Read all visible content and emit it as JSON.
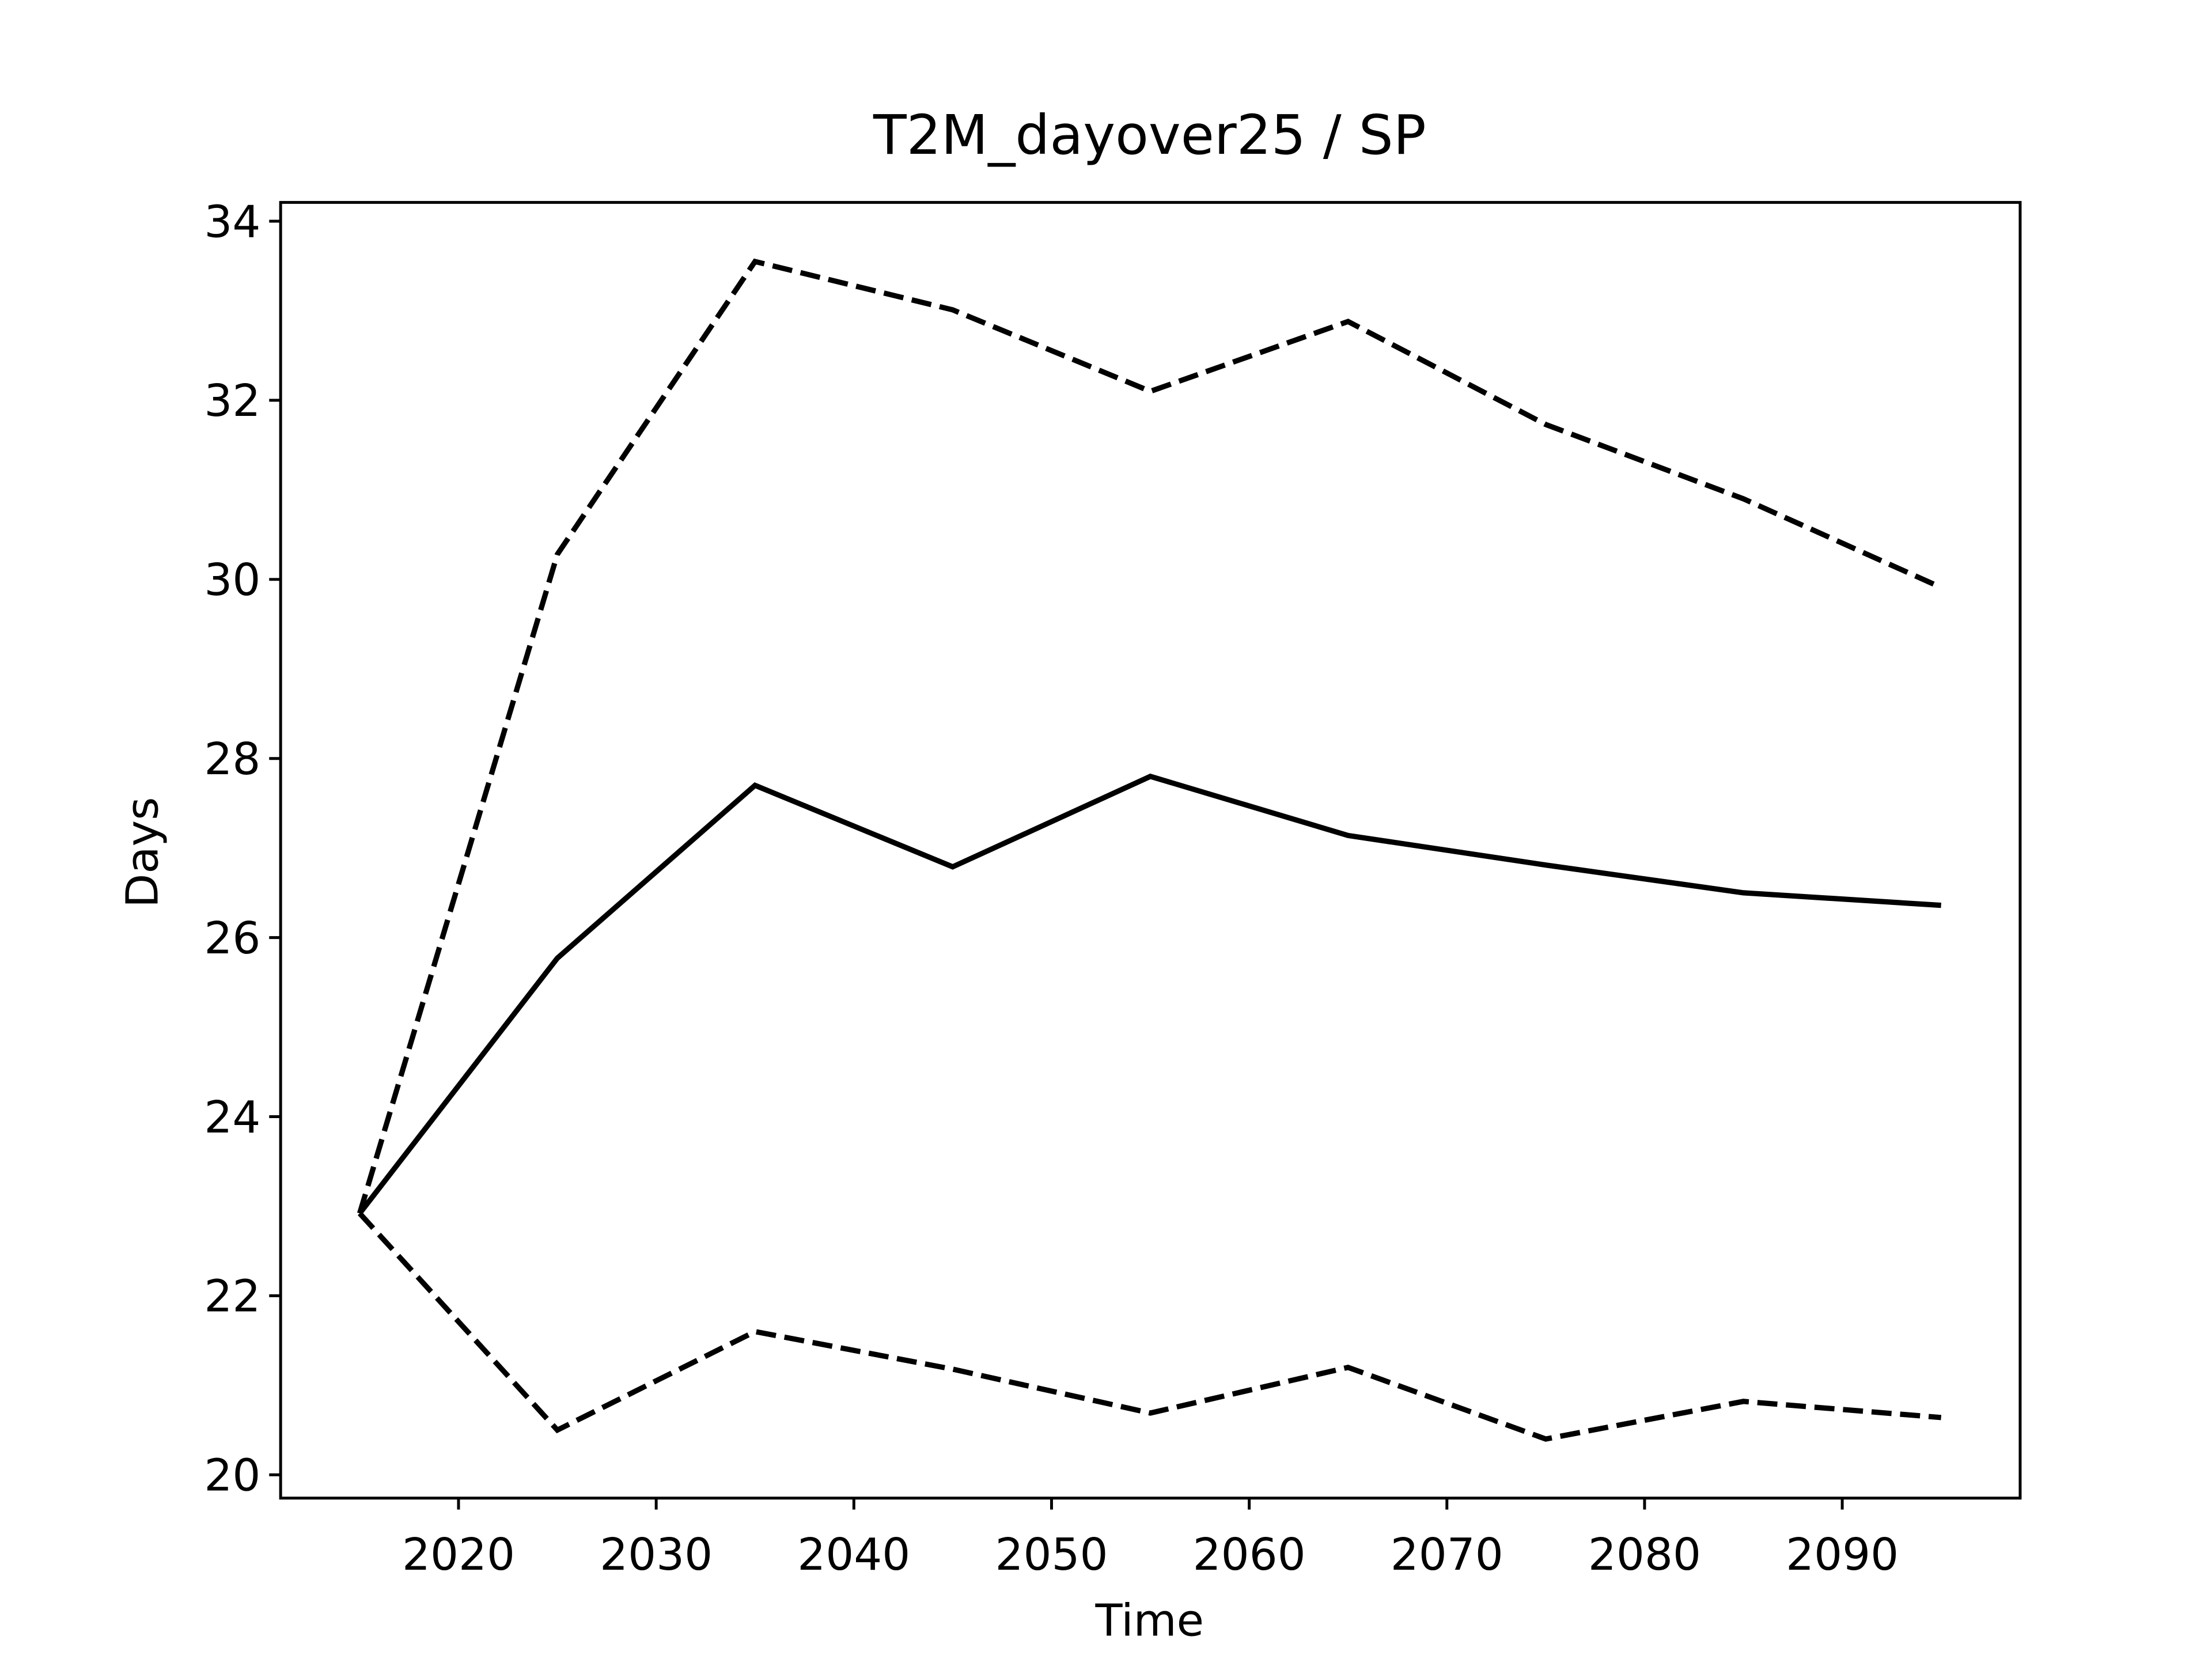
{
  "chart_data": {
    "type": "line",
    "title": "T2M_dayover25 / SP",
    "x_label": "Time",
    "y_label": "Days",
    "x": [
      2015,
      2025,
      2035,
      2045,
      2055,
      2065,
      2075,
      2085,
      2095
    ],
    "series": [
      {
        "color": "#000000",
        "dash": "solid",
        "values": [
          22.92,
          25.77,
          27.7,
          26.79,
          27.8,
          27.14,
          26.81,
          26.5,
          26.36
        ]
      },
      {
        "color": "#000000",
        "dash": "dashed",
        "values": [
          22.92,
          30.28,
          33.55,
          33.01,
          32.1,
          32.88,
          31.73,
          30.9,
          29.91
        ]
      },
      {
        "color": "#000000",
        "dash": "dashed",
        "values": [
          22.92,
          20.5,
          21.6,
          21.18,
          20.69,
          21.2,
          20.4,
          20.82,
          20.64
        ]
      }
    ],
    "xlim": [
      2011,
      2099
    ],
    "xticks": [
      2020,
      2030,
      2040,
      2050,
      2060,
      2070,
      2080,
      2090
    ],
    "ylim": [
      19.74,
      34.21
    ],
    "yticks": [
      20,
      22,
      24,
      26,
      28,
      30,
      32,
      34
    ],
    "grid": false
  }
}
